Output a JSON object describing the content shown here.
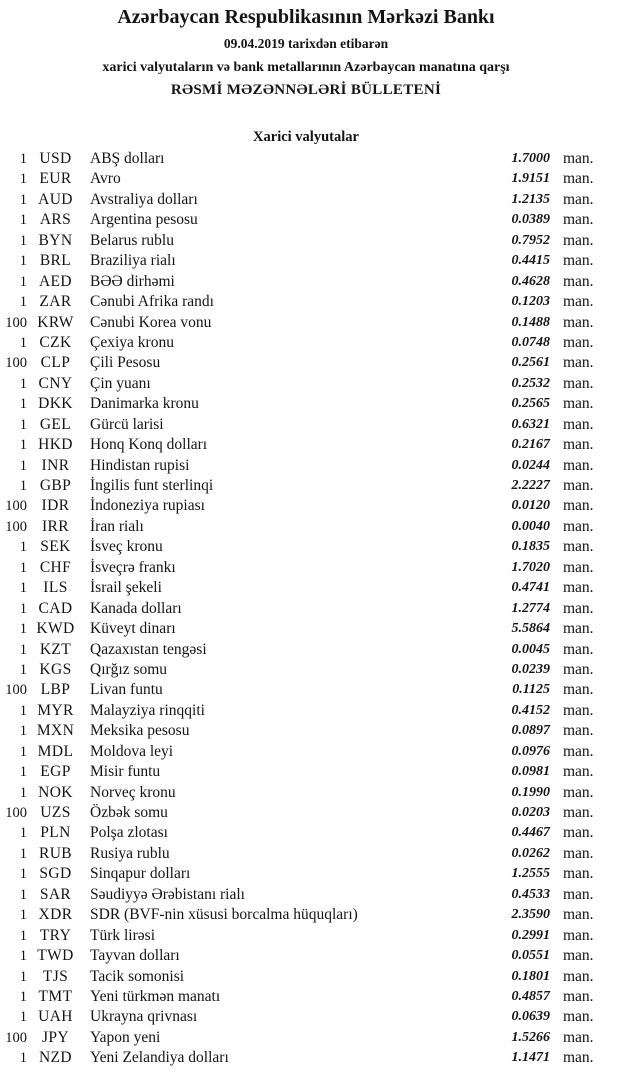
{
  "document": {
    "title": "Azərbaycan Respublikasının Mərkəzi Bankı",
    "effective_date_line": "09.04.2019 tarixdən etibarən",
    "subtitle_line": "xarici valyutaların və bank metallarının Azərbaycan manatına qarşı",
    "bulletin_title": "RƏSMİ MƏZƏNNƏLƏRİ BÜLLETENİ",
    "section_title": "Xarici valyutalar",
    "unit_label": "man.",
    "text_color": "#141414",
    "background_color": "#ffffff"
  },
  "rates": [
    {
      "qty": "1",
      "code": "USD",
      "name": "ABŞ dolları",
      "rate": "1.7000"
    },
    {
      "qty": "1",
      "code": "EUR",
      "name": "Avro",
      "rate": "1.9151"
    },
    {
      "qty": "1",
      "code": "AUD",
      "name": "Avstraliya dolları",
      "rate": "1.2135"
    },
    {
      "qty": "1",
      "code": "ARS",
      "name": "Argentina pesosu",
      "rate": "0.0389"
    },
    {
      "qty": "1",
      "code": "BYN",
      "name": "Belarus rublu",
      "rate": "0.7952"
    },
    {
      "qty": "1",
      "code": "BRL",
      "name": "Braziliya rialı",
      "rate": "0.4415"
    },
    {
      "qty": "1",
      "code": "AED",
      "name": "BƏƏ dirhəmi",
      "rate": "0.4628"
    },
    {
      "qty": "1",
      "code": "ZAR",
      "name": "Cənubi Afrika randı",
      "rate": "0.1203"
    },
    {
      "qty": "100",
      "code": "KRW",
      "name": "Cənubi Korea vonu",
      "rate": "0.1488"
    },
    {
      "qty": "1",
      "code": "CZK",
      "name": "Çexiya kronu",
      "rate": "0.0748"
    },
    {
      "qty": "100",
      "code": "CLP",
      "name": "Çili Pesosu",
      "rate": "0.2561"
    },
    {
      "qty": "1",
      "code": "CNY",
      "name": "Çin yuanı",
      "rate": "0.2532"
    },
    {
      "qty": "1",
      "code": "DKK",
      "name": "Danimarka kronu",
      "rate": "0.2565"
    },
    {
      "qty": "1",
      "code": "GEL",
      "name": "Gürcü larisi",
      "rate": "0.6321"
    },
    {
      "qty": "1",
      "code": "HKD",
      "name": "Honq Konq dolları",
      "rate": "0.2167"
    },
    {
      "qty": "1",
      "code": "INR",
      "name": "Hindistan rupisi",
      "rate": "0.0244"
    },
    {
      "qty": "1",
      "code": "GBP",
      "name": "İngilis funt sterlinqi",
      "rate": "2.2227"
    },
    {
      "qty": "100",
      "code": "IDR",
      "name": "İndoneziya rupiası",
      "rate": "0.0120"
    },
    {
      "qty": "100",
      "code": "IRR",
      "name": "İran rialı",
      "rate": "0.0040"
    },
    {
      "qty": "1",
      "code": "SEK",
      "name": "İsveç kronu",
      "rate": "0.1835"
    },
    {
      "qty": "1",
      "code": "CHF",
      "name": "İsveçrə frankı",
      "rate": "1.7020"
    },
    {
      "qty": "1",
      "code": "ILS",
      "name": "İsrail şekeli",
      "rate": "0.4741"
    },
    {
      "qty": "1",
      "code": "CAD",
      "name": "Kanada dolları",
      "rate": "1.2774"
    },
    {
      "qty": "1",
      "code": "KWD",
      "name": "Küveyt dinarı",
      "rate": "5.5864"
    },
    {
      "qty": "1",
      "code": "KZT",
      "name": "Qazaxıstan tengəsi",
      "rate": "0.0045"
    },
    {
      "qty": "1",
      "code": "KGS",
      "name": "Qırğız somu",
      "rate": "0.0239"
    },
    {
      "qty": "100",
      "code": "LBP",
      "name": "Livan funtu",
      "rate": "0.1125"
    },
    {
      "qty": "1",
      "code": "MYR",
      "name": "Malayziya rinqqiti",
      "rate": "0.4152"
    },
    {
      "qty": "1",
      "code": "MXN",
      "name": "Meksika pesosu",
      "rate": "0.0897"
    },
    {
      "qty": "1",
      "code": "MDL",
      "name": "Moldova leyi",
      "rate": "0.0976"
    },
    {
      "qty": "1",
      "code": "EGP",
      "name": "Misir funtu",
      "rate": "0.0981"
    },
    {
      "qty": "1",
      "code": "NOK",
      "name": "Norveç kronu",
      "rate": "0.1990"
    },
    {
      "qty": "100",
      "code": "UZS",
      "name": "Özbək somu",
      "rate": "0.0203"
    },
    {
      "qty": "1",
      "code": "PLN",
      "name": "Polşa zlotası",
      "rate": "0.4467"
    },
    {
      "qty": "1",
      "code": "RUB",
      "name": "Rusiya rublu",
      "rate": "0.0262"
    },
    {
      "qty": "1",
      "code": "SGD",
      "name": "Sinqapur dolları",
      "rate": "1.2555"
    },
    {
      "qty": "1",
      "code": "SAR",
      "name": "Səudiyyə Ərəbistanı rialı",
      "rate": "0.4533"
    },
    {
      "qty": "1",
      "code": "XDR",
      "name": "SDR (BVF-nin xüsusi borcalma hüquqları)",
      "rate": "2.3590"
    },
    {
      "qty": "1",
      "code": "TRY",
      "name": "Türk lirəsi",
      "rate": "0.2991"
    },
    {
      "qty": "1",
      "code": "TWD",
      "name": "Tayvan dolları",
      "rate": "0.0551"
    },
    {
      "qty": "1",
      "code": "TJS",
      "name": "Tacik somonisi",
      "rate": "0.1801"
    },
    {
      "qty": "1",
      "code": "TMT",
      "name": "Yeni türkmən manatı",
      "rate": "0.4857"
    },
    {
      "qty": "1",
      "code": "UAH",
      "name": "Ukrayna qrivnası",
      "rate": "0.0639"
    },
    {
      "qty": "100",
      "code": "JPY",
      "name": "Yapon yeni",
      "rate": "1.5266"
    },
    {
      "qty": "1",
      "code": "NZD",
      "name": "Yeni Zelandiya dolları",
      "rate": "1.1471"
    }
  ]
}
